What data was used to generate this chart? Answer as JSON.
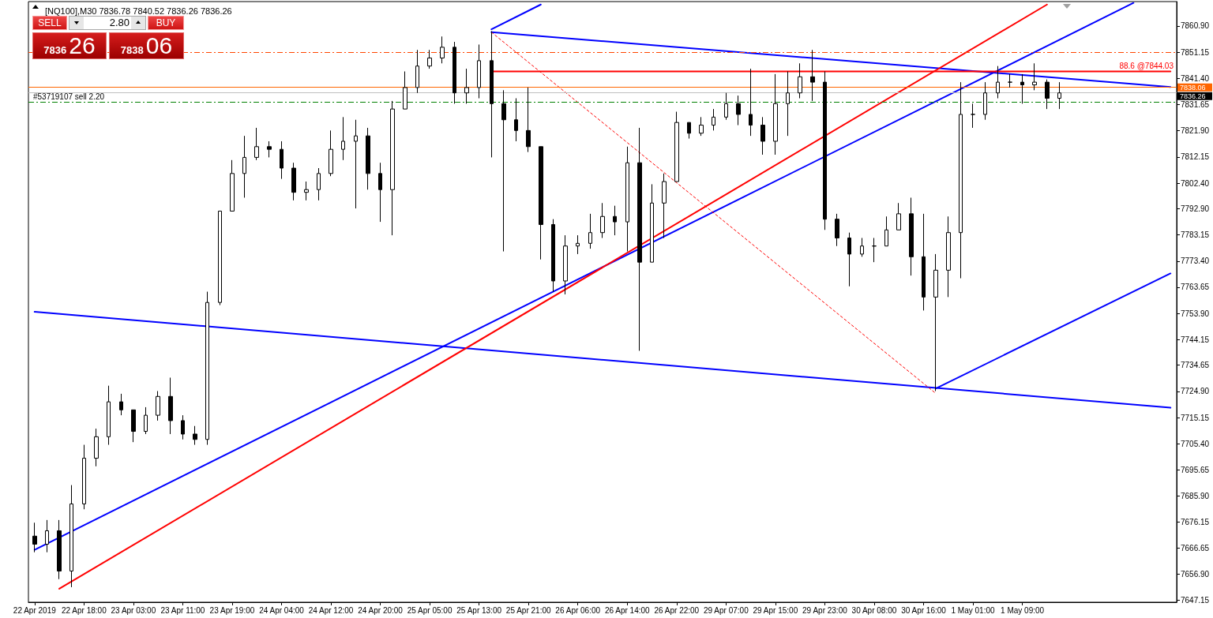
{
  "chart_data": {
    "type": "candlestick",
    "title": "[NQ100],M30 7836.78 7840.52 7836.26 7836.26",
    "categories": [
      "22 Apr 2019",
      null,
      null,
      null,
      "22 Apr 18:00",
      null,
      null,
      null,
      "23 Apr 03:00",
      null,
      null,
      null,
      "23 Apr 11:00",
      null,
      null,
      null,
      "23 Apr 19:00",
      null,
      null,
      null,
      "24 Apr 04:00",
      null,
      null,
      null,
      "24 Apr 12:00",
      null,
      null,
      null,
      "24 Apr 20:00",
      null,
      null,
      null,
      "25 Apr 05:00",
      null,
      null,
      null,
      "25 Apr 13:00",
      null,
      null,
      null,
      "25 Apr 21:00",
      null,
      null,
      null,
      "26 Apr 06:00",
      null,
      null,
      null,
      "26 Apr 14:00",
      null,
      null,
      null,
      "26 Apr 22:00",
      null,
      null,
      null,
      "29 Apr 07:00",
      null,
      null,
      null,
      "29 Apr 15:00",
      null,
      null,
      null,
      "29 Apr 23:00",
      null,
      null,
      null,
      "30 Apr 08:00",
      null,
      null,
      null,
      "30 Apr 16:00",
      null,
      null,
      null,
      "1 May 01:00",
      null,
      null,
      null,
      "1 May 09:00",
      null,
      null,
      null,
      null,
      null,
      null,
      null,
      null,
      null,
      null,
      null,
      null
    ],
    "ohlc": [
      [
        7671,
        7676,
        7665,
        7668
      ],
      [
        7668,
        7677,
        7665,
        7673
      ],
      [
        7673,
        7677,
        7655,
        7658
      ],
      [
        7658,
        7690,
        7652,
        7683
      ],
      [
        7683,
        7705,
        7681,
        7700
      ],
      [
        7700,
        7711,
        7697,
        7708
      ],
      [
        7708,
        7727,
        7705,
        7721
      ],
      [
        7721,
        7724,
        7716,
        7718
      ],
      [
        7718,
        7718,
        7706,
        7710
      ],
      [
        7710,
        7719,
        7709,
        7716
      ],
      [
        7716,
        7725,
        7714,
        7723
      ],
      [
        7723,
        7730,
        7709,
        7714
      ],
      [
        7714,
        7716,
        7707,
        7709
      ],
      [
        7709,
        7712,
        7705,
        7707
      ],
      [
        7707,
        7762,
        7705,
        7758
      ],
      [
        7758,
        7792,
        7757,
        7792
      ],
      [
        7792,
        7811,
        7792,
        7806
      ],
      [
        7806,
        7820,
        7797,
        7812
      ],
      [
        7812,
        7823,
        7811,
        7816
      ],
      [
        7816,
        7818,
        7812,
        7815
      ],
      [
        7815,
        7818,
        7804,
        7808
      ],
      [
        7808,
        7810,
        7796,
        7799
      ],
      [
        7799,
        7803,
        7796,
        7800
      ],
      [
        7800,
        7808,
        7796,
        7806
      ],
      [
        7806,
        7822,
        7805,
        7815
      ],
      [
        7815,
        7827,
        7811,
        7818
      ],
      [
        7818,
        7826,
        7793,
        7820
      ],
      [
        7820,
        7823,
        7800,
        7806
      ],
      [
        7806,
        7810,
        7788,
        7800
      ],
      [
        7800,
        7833,
        7783,
        7830
      ],
      [
        7830,
        7844,
        7830,
        7838
      ],
      [
        7838,
        7852,
        7836,
        7846
      ],
      [
        7846,
        7852,
        7845,
        7849
      ],
      [
        7849,
        7857,
        7847,
        7853
      ],
      [
        7853,
        7855,
        7832,
        7836
      ],
      [
        7836,
        7845,
        7832,
        7838
      ],
      [
        7838,
        7854,
        7834,
        7848
      ],
      [
        7848,
        7859,
        7812,
        7832
      ],
      [
        7832,
        7837,
        7777,
        7826
      ],
      [
        7826,
        7834,
        7818,
        7822
      ],
      [
        7822,
        7838,
        7814,
        7816
      ],
      [
        7816,
        7816,
        7774,
        7787
      ],
      [
        7787,
        7789,
        7762,
        7766
      ],
      [
        7766,
        7783,
        7761,
        7779
      ],
      [
        7779,
        7783,
        7776,
        7780
      ],
      [
        7780,
        7791,
        7778,
        7784
      ],
      [
        7784,
        7795,
        7782,
        7790
      ],
      [
        7790,
        7794,
        7783,
        7788
      ],
      [
        7788,
        7816,
        7777,
        7810
      ],
      [
        7810,
        7823,
        7740,
        7773
      ],
      [
        7773,
        7802,
        7773,
        7795
      ],
      [
        7795,
        7806,
        7782,
        7803
      ],
      [
        7803,
        7829,
        7803,
        7825
      ],
      [
        7825,
        7825,
        7819,
        7821
      ],
      [
        7821,
        7827,
        7820,
        7824
      ],
      [
        7824,
        7830,
        7822,
        7827
      ],
      [
        7827,
        7836,
        7826,
        7832
      ],
      [
        7832,
        7835,
        7824,
        7828
      ],
      [
        7828,
        7845,
        7820,
        7824
      ],
      [
        7824,
        7827,
        7813,
        7818
      ],
      [
        7818,
        7843,
        7813,
        7832
      ],
      [
        7832,
        7844,
        7820,
        7836
      ],
      [
        7836,
        7847,
        7834,
        7842
      ],
      [
        7842,
        7852,
        7833,
        7840
      ],
      [
        7840,
        7844,
        7785,
        7789
      ],
      [
        7789,
        7791,
        7779,
        7782
      ],
      [
        7782,
        7784,
        7764,
        7776
      ],
      [
        7776,
        7782,
        7775,
        7779
      ],
      [
        7779,
        7782,
        7773,
        7779
      ],
      [
        7779,
        7790,
        7779,
        7785
      ],
      [
        7785,
        7795,
        7785,
        7791
      ],
      [
        7791,
        7797,
        7768,
        7775
      ],
      [
        7775,
        7791,
        7755,
        7760
      ],
      [
        7760,
        7776,
        7725,
        7770
      ],
      [
        7770,
        7790,
        7760,
        7784
      ],
      [
        7784,
        7840,
        7767,
        7828
      ],
      [
        7828,
        7832,
        7823,
        7828
      ],
      [
        7828,
        7840,
        7826,
        7836
      ],
      [
        7836,
        7846,
        7834,
        7840
      ],
      [
        7840,
        7843,
        7838,
        7840
      ],
      [
        7840,
        7843,
        7832,
        7839
      ],
      [
        7839,
        7847,
        7837,
        7840
      ],
      [
        7840,
        7841,
        7830,
        7834
      ],
      [
        7834,
        7840,
        7830,
        7836
      ],
      null,
      null,
      null,
      null,
      null,
      null,
      null,
      null,
      null
    ],
    "color": "#000000",
    "marker": "none",
    "ylim": [
      7646.4,
      7870.0
    ],
    "yticks": [
      7647.15,
      {
        "value": 7656.9,
        "label": "7656.90"
      },
      7666.65,
      7676.15,
      {
        "value": 7685.9,
        "label": "7685.90"
      },
      7695.65,
      {
        "value": 7705.4,
        "label": "7705.40"
      },
      7715.15,
      {
        "value": 7724.9,
        "label": "7724.90"
      },
      7734.65,
      7744.15,
      {
        "value": 7753.9,
        "label": "7753.90"
      },
      7763.65,
      {
        "value": 7773.4,
        "label": "7773.40"
      },
      7783.15,
      {
        "value": 7792.9,
        "label": "7792.90"
      },
      {
        "value": 7802.4,
        "label": "7802.40"
      },
      7812.15,
      {
        "value": 7821.9,
        "label": "7821.90"
      },
      7831.65,
      {
        "value": 7841.4,
        "label": "7841.40"
      },
      7851.15,
      {
        "value": 7860.9,
        "label": "7860.90"
      }
    ],
    "series": [
      {
        "type": "line",
        "color": "#0000ff",
        "values": [
          7665.9,
          null,
          null,
          null,
          null,
          null,
          null,
          null,
          null,
          null,
          null,
          null,
          null,
          null,
          null,
          null,
          null,
          null,
          null,
          null,
          null,
          null,
          null,
          null,
          null,
          null,
          null,
          null,
          null,
          null,
          null,
          null,
          null,
          null,
          null,
          null,
          null,
          null,
          null,
          null,
          null,
          null,
          null,
          null,
          null,
          null,
          null,
          null,
          null,
          null,
          null,
          null,
          null,
          null,
          null,
          null,
          null,
          null,
          null,
          null,
          null,
          null,
          null,
          null,
          null,
          null,
          null,
          null,
          null,
          null,
          null,
          null,
          null,
          null,
          null,
          null,
          null,
          null,
          null,
          null,
          null,
          null,
          null,
          null,
          null,
          null,
          null,
          null,
          null,
          7869.5,
          null,
          null,
          null
        ]
      },
      {
        "type": "line",
        "color": "#0000ff",
        "values": [
          null,
          null,
          null,
          null,
          null,
          null,
          null,
          null,
          null,
          null,
          null,
          null,
          null,
          null,
          null,
          null,
          null,
          null,
          null,
          null,
          null,
          null,
          null,
          null,
          null,
          null,
          null,
          null,
          null,
          null,
          null,
          null,
          null,
          null,
          null,
          null,
          null,
          7859.7,
          null,
          null,
          null,
          7868.9,
          null,
          null,
          null,
          null,
          null,
          null,
          null,
          null,
          null,
          null,
          null,
          null,
          null,
          null,
          null,
          null,
          null,
          null,
          null,
          null,
          null,
          null,
          null,
          null,
          null,
          null,
          null,
          null,
          null,
          null,
          null,
          null,
          null,
          null,
          null,
          null,
          null,
          null,
          null,
          null,
          null,
          null,
          null,
          null,
          null,
          null,
          null,
          null,
          null,
          null,
          null
        ]
      },
      {
        "type": "line",
        "color": "#0000ff",
        "values": [
          null,
          null,
          null,
          null,
          null,
          null,
          null,
          null,
          null,
          null,
          null,
          null,
          null,
          null,
          null,
          null,
          null,
          null,
          null,
          null,
          null,
          null,
          null,
          null,
          null,
          null,
          null,
          null,
          null,
          null,
          null,
          null,
          null,
          null,
          null,
          null,
          null,
          7858.6,
          null,
          null,
          null,
          null,
          null,
          null,
          null,
          null,
          null,
          null,
          null,
          null,
          null,
          null,
          null,
          null,
          null,
          null,
          null,
          null,
          null,
          null,
          null,
          null,
          null,
          null,
          null,
          null,
          null,
          null,
          null,
          null,
          null,
          null,
          null,
          null,
          null,
          null,
          null,
          null,
          null,
          null,
          null,
          null,
          null,
          null,
          null,
          null,
          null,
          null,
          null,
          null,
          null,
          null,
          7838.2
        ]
      },
      {
        "type": "line",
        "color": "#0000ff",
        "values": [
          7754.5,
          null,
          null,
          null,
          null,
          null,
          null,
          null,
          null,
          null,
          null,
          null,
          null,
          null,
          null,
          null,
          null,
          null,
          null,
          null,
          null,
          null,
          null,
          null,
          null,
          null,
          null,
          null,
          null,
          null,
          null,
          null,
          null,
          null,
          null,
          null,
          null,
          null,
          null,
          null,
          null,
          null,
          null,
          null,
          null,
          null,
          null,
          null,
          null,
          null,
          null,
          null,
          null,
          null,
          null,
          null,
          null,
          null,
          null,
          null,
          null,
          null,
          null,
          null,
          null,
          null,
          null,
          null,
          null,
          null,
          null,
          null,
          null,
          null,
          null,
          null,
          null,
          null,
          null,
          null,
          null,
          null,
          null,
          null,
          null,
          null,
          null,
          null,
          null,
          null,
          null,
          null,
          7718.8
        ]
      },
      {
        "type": "line",
        "color": "#0000ff",
        "values": [
          null,
          null,
          null,
          null,
          null,
          null,
          null,
          null,
          null,
          null,
          null,
          null,
          null,
          null,
          null,
          null,
          null,
          null,
          null,
          null,
          null,
          null,
          null,
          null,
          null,
          null,
          null,
          null,
          null,
          null,
          null,
          null,
          null,
          null,
          null,
          null,
          null,
          null,
          null,
          null,
          null,
          null,
          null,
          null,
          null,
          null,
          null,
          null,
          null,
          null,
          null,
          null,
          null,
          null,
          null,
          null,
          null,
          null,
          null,
          null,
          null,
          null,
          null,
          null,
          null,
          null,
          null,
          null,
          null,
          null,
          null,
          null,
          null,
          7726,
          null,
          null,
          null,
          null,
          null,
          null,
          null,
          null,
          null,
          null,
          null,
          null,
          null,
          null,
          null,
          null,
          null,
          null,
          7768.8
        ]
      },
      {
        "type": "line",
        "color": "#ff0000",
        "values": [
          null,
          null,
          7651.4,
          null,
          null,
          null,
          null,
          null,
          null,
          null,
          null,
          null,
          null,
          null,
          null,
          null,
          null,
          null,
          null,
          null,
          null,
          null,
          null,
          null,
          null,
          null,
          null,
          null,
          null,
          null,
          null,
          null,
          null,
          null,
          null,
          null,
          null,
          null,
          null,
          null,
          null,
          null,
          null,
          null,
          null,
          null,
          null,
          null,
          null,
          null,
          null,
          null,
          null,
          null,
          null,
          null,
          null,
          null,
          null,
          null,
          null,
          null,
          null,
          null,
          null,
          null,
          null,
          null,
          null,
          null,
          null,
          null,
          null,
          null,
          null,
          null,
          null,
          null,
          null,
          null,
          null,
          null,
          7868.9,
          null,
          null,
          null,
          null,
          null,
          null,
          null,
          null,
          null,
          null
        ]
      },
      {
        "type": "line",
        "color": "#ff0000",
        "line_style": "dashed",
        "values": [
          null,
          null,
          null,
          null,
          null,
          null,
          null,
          null,
          null,
          null,
          null,
          null,
          null,
          null,
          null,
          null,
          null,
          null,
          null,
          null,
          null,
          null,
          null,
          null,
          null,
          null,
          null,
          null,
          null,
          null,
          null,
          null,
          null,
          null,
          null,
          null,
          null,
          7858.6,
          null,
          null,
          null,
          null,
          null,
          null,
          null,
          null,
          null,
          null,
          null,
          null,
          null,
          null,
          null,
          null,
          null,
          null,
          null,
          null,
          null,
          null,
          null,
          null,
          null,
          null,
          null,
          null,
          null,
          null,
          null,
          null,
          null,
          null,
          null,
          7724.1,
          null,
          null,
          null,
          null,
          null,
          null,
          null,
          null,
          null,
          null,
          null,
          null,
          null,
          null,
          null,
          null,
          null,
          null,
          null
        ]
      },
      {
        "type": "line",
        "color": "#ff0000",
        "values": [
          null,
          null,
          null,
          null,
          null,
          null,
          null,
          null,
          null,
          null,
          null,
          null,
          null,
          null,
          null,
          null,
          null,
          null,
          null,
          null,
          null,
          null,
          null,
          null,
          null,
          null,
          null,
          null,
          null,
          null,
          null,
          null,
          null,
          null,
          null,
          null,
          null,
          7844.03,
          null,
          null,
          null,
          null,
          null,
          null,
          null,
          null,
          null,
          null,
          null,
          null,
          null,
          null,
          null,
          null,
          null,
          null,
          null,
          null,
          null,
          null,
          null,
          null,
          null,
          null,
          null,
          null,
          null,
          null,
          null,
          null,
          null,
          null,
          null,
          null,
          null,
          null,
          null,
          null,
          null,
          null,
          null,
          null,
          null,
          null,
          null,
          null,
          null,
          null,
          null,
          null,
          null,
          null,
          7844.03
        ]
      }
    ],
    "ref_lines": [
      {
        "axis": "y",
        "value": 7851.0,
        "color": "#ff4500",
        "line_style": "dashed"
      },
      {
        "axis": "y",
        "value": 7832.7,
        "label": "#53719107 sell 2.20",
        "color": "#008000",
        "line_style": "dashed"
      },
      {
        "axis": "y",
        "value": 7838.06,
        "label": "7838.06",
        "color": "#ff6600"
      },
      {
        "axis": "y",
        "value": 7836.26,
        "label": "7836.26",
        "color": "#c0c0c0"
      }
    ],
    "annotations": [
      "SELL",
      "2.80",
      "BUY",
      "7836",
      "26",
      "7838",
      "06",
      {
        "text": "88.6 @7844.03",
        "y": 7844.03
      }
    ]
  }
}
